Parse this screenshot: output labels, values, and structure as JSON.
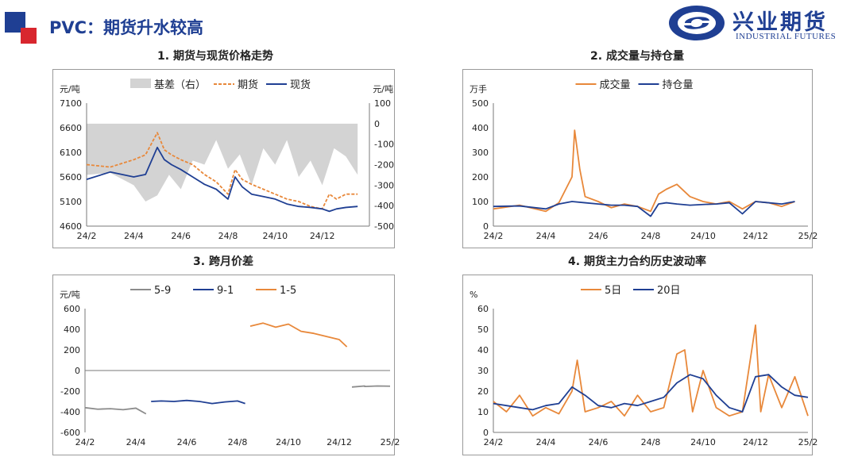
{
  "header": {
    "title": "PVC：期货升水较高",
    "brand_cn": "兴业期货",
    "brand_en": "INDUSTRIAL FUTURES",
    "colors": {
      "brand_blue": "#1f3f93",
      "brand_red": "#d8262e"
    }
  },
  "chart_data": [
    {
      "type": "line",
      "title": "1. 期货与现货价格走势",
      "ylabel": "元/吨",
      "y2label": "元/吨",
      "ylim": [
        4600,
        7100
      ],
      "yticks": [
        4600,
        5100,
        5600,
        6100,
        6600,
        7100
      ],
      "y2lim": [
        -500,
        100
      ],
      "y2ticks": [
        -500,
        -400,
        -300,
        -200,
        -100,
        0,
        100
      ],
      "xlim": [
        "24/2",
        "25/2"
      ],
      "xticks": [
        "24/2",
        "24/4",
        "24/6",
        "24/8",
        "24/10",
        "24/12"
      ],
      "legend_position": "top",
      "grid": false,
      "series": [
        {
          "name": "基差（右）",
          "kind": "area",
          "axis": "right",
          "color": "#d3d3d3",
          "x": [
            "24/2",
            "24/3",
            "24/4",
            "24/4.5",
            "24/5",
            "24/5.5",
            "24/6",
            "24/6.5",
            "24/7",
            "24/7.5",
            "24/8",
            "24/8.5",
            "24/9",
            "24/9.5",
            "24/10",
            "24/10.5",
            "24/11",
            "24/11.5",
            "24/12",
            "24/12.5",
            "25/1",
            "25/1.5"
          ],
          "values": [
            -250,
            -240,
            -300,
            -380,
            -350,
            -250,
            -320,
            -180,
            -200,
            -80,
            -220,
            -150,
            -300,
            -120,
            -200,
            -80,
            -260,
            -180,
            -300,
            -120,
            -160,
            -250
          ]
        },
        {
          "name": "期货",
          "kind": "dashed",
          "axis": "left",
          "color": "#e8883a",
          "x": [
            "24/2",
            "24/3",
            "24/4",
            "24/4.5",
            "24/5",
            "24/5.3",
            "24/5.6",
            "24/6",
            "24/6.5",
            "24/7",
            "24/7.5",
            "24/8",
            "24/8.3",
            "24/8.6",
            "24/9",
            "24/9.5",
            "24/10",
            "24/10.5",
            "24/11",
            "24/11.5",
            "24/12",
            "24/12.3",
            "24/12.6",
            "25/1",
            "25/1.5"
          ],
          "values": [
            5850,
            5800,
            5950,
            6050,
            6500,
            6150,
            6050,
            5950,
            5850,
            5650,
            5500,
            5250,
            5750,
            5550,
            5450,
            5350,
            5250,
            5150,
            5100,
            5000,
            4950,
            5250,
            5150,
            5250,
            5250
          ]
        },
        {
          "name": "现货",
          "kind": "solid",
          "axis": "left",
          "color": "#1f3f93",
          "x": [
            "24/2",
            "24/3",
            "24/4",
            "24/4.5",
            "24/5",
            "24/5.3",
            "24/5.6",
            "24/6",
            "24/6.5",
            "24/7",
            "24/7.5",
            "24/8",
            "24/8.3",
            "24/8.6",
            "24/9",
            "24/9.5",
            "24/10",
            "24/10.5",
            "24/11",
            "24/11.5",
            "24/12",
            "24/12.3",
            "24/12.6",
            "25/1",
            "25/1.5"
          ],
          "values": [
            5550,
            5700,
            5600,
            5650,
            6200,
            5950,
            5850,
            5750,
            5600,
            5450,
            5350,
            5150,
            5600,
            5400,
            5250,
            5200,
            5150,
            5050,
            5000,
            4980,
            4950,
            4900,
            4950,
            4980,
            5000
          ]
        }
      ]
    },
    {
      "type": "line",
      "title": "2. 成交量与持仓量",
      "ylabel": "万手",
      "ylim": [
        0,
        500
      ],
      "yticks": [
        0,
        100,
        200,
        300,
        400,
        500
      ],
      "xlim": [
        "24/2",
        "25/2"
      ],
      "xticks": [
        "24/2",
        "24/4",
        "24/6",
        "24/8",
        "24/10",
        "24/12",
        "25/2"
      ],
      "legend_position": "top",
      "grid": false,
      "series": [
        {
          "name": "成交量",
          "color": "#e8883a",
          "x": [
            "24/2",
            "24/3",
            "24/4",
            "24/4.5",
            "24/5",
            "24/5.1",
            "24/5.3",
            "24/5.5",
            "24/6",
            "24/6.5",
            "24/7",
            "24/7.5",
            "24/8",
            "24/8.3",
            "24/8.6",
            "24/9",
            "24/9.5",
            "24/10",
            "24/10.5",
            "24/11",
            "24/11.5",
            "24/12",
            "24/12.5",
            "25/1",
            "25/1.5"
          ],
          "values": [
            70,
            85,
            60,
            95,
            200,
            390,
            230,
            120,
            100,
            75,
            90,
            80,
            60,
            130,
            150,
            170,
            120,
            100,
            90,
            100,
            70,
            100,
            95,
            80,
            100
          ]
        },
        {
          "name": "持仓量",
          "color": "#1f3f93",
          "x": [
            "24/2",
            "24/3",
            "24/4",
            "24/4.5",
            "24/5",
            "24/5.5",
            "24/6",
            "24/6.5",
            "24/7",
            "24/7.5",
            "24/8",
            "24/8.3",
            "24/8.6",
            "24/9",
            "24/9.5",
            "24/10",
            "24/10.5",
            "24/11",
            "24/11.5",
            "24/12",
            "24/12.5",
            "25/1",
            "25/1.5"
          ],
          "values": [
            80,
            82,
            70,
            90,
            100,
            95,
            90,
            85,
            85,
            80,
            40,
            90,
            95,
            90,
            85,
            88,
            90,
            95,
            50,
            100,
            95,
            90,
            100
          ]
        }
      ]
    },
    {
      "type": "line",
      "title": "3. 跨月价差",
      "ylabel": "元/吨",
      "ylim": [
        -600,
        600
      ],
      "yticks": [
        -600,
        -400,
        -200,
        0,
        200,
        400,
        600
      ],
      "xlim": [
        "24/2",
        "25/2"
      ],
      "xticks": [
        "24/2",
        "24/4",
        "24/6",
        "24/8",
        "24/10",
        "24/12",
        "25/2"
      ],
      "legend_position": "top",
      "grid": false,
      "series": [
        {
          "name": "5-9",
          "color": "#8c8c8c",
          "x": [
            "24/2",
            "24/2.5",
            "24/3",
            "24/3.5",
            "24/4",
            "24/4.4",
            "24/12.5",
            "24/13",
            "25/1",
            "25/1.5",
            "25/2"
          ],
          "values": [
            -360,
            -375,
            -370,
            -380,
            -365,
            -420,
            -160,
            -150,
            -155,
            -150,
            -152
          ],
          "segments": [
            [
              0,
              5
            ],
            [
              6,
              10
            ]
          ]
        },
        {
          "name": "9-1",
          "color": "#1f3f93",
          "x": [
            "24/4.6",
            "24/5",
            "24/5.5",
            "24/6",
            "24/6.5",
            "24/7",
            "24/7.5",
            "24/8",
            "24/8.3"
          ],
          "values": [
            -300,
            -295,
            -300,
            -290,
            -300,
            -320,
            -305,
            -295,
            -320
          ]
        },
        {
          "name": "1-5",
          "color": "#e8883a",
          "x": [
            "24/8.5",
            "24/9",
            "24/9.5",
            "24/10",
            "24/10.5",
            "24/11",
            "24/11.5",
            "24/12",
            "24/12.3"
          ],
          "values": [
            430,
            460,
            420,
            450,
            380,
            360,
            330,
            300,
            230
          ]
        }
      ]
    },
    {
      "type": "line",
      "title": "4. 期货主力合约历史波动率",
      "ylabel": "%",
      "ylim": [
        0,
        60
      ],
      "yticks": [
        0,
        10,
        20,
        30,
        40,
        50,
        60
      ],
      "xlim": [
        "24/2",
        "25/2"
      ],
      "xticks": [
        "24/2",
        "24/4",
        "24/6",
        "24/8",
        "24/10",
        "24/12",
        "25/2"
      ],
      "legend_position": "top",
      "grid": false,
      "series": [
        {
          "name": "5日",
          "color": "#e8883a",
          "x": [
            "24/2",
            "24/2.5",
            "24/3",
            "24/3.5",
            "24/4",
            "24/4.5",
            "24/5",
            "24/5.2",
            "24/5.5",
            "24/6",
            "24/6.5",
            "24/7",
            "24/7.5",
            "24/8",
            "24/8.5",
            "24/9",
            "24/9.3",
            "24/9.6",
            "24/10",
            "24/10.5",
            "24/11",
            "24/11.5",
            "24/12",
            "24/12.2",
            "24/12.5",
            "25/1",
            "25/1.5",
            "25/2"
          ],
          "values": [
            15,
            10,
            18,
            8,
            12,
            9,
            20,
            35,
            10,
            12,
            15,
            8,
            18,
            10,
            12,
            38,
            40,
            10,
            30,
            12,
            8,
            10,
            52,
            10,
            28,
            12,
            27,
            8
          ]
        },
        {
          "name": "20日",
          "color": "#1f3f93",
          "x": [
            "24/2",
            "24/2.5",
            "24/3",
            "24/3.5",
            "24/4",
            "24/4.5",
            "24/5",
            "24/5.5",
            "24/6",
            "24/6.5",
            "24/7",
            "24/7.5",
            "24/8",
            "24/8.5",
            "24/9",
            "24/9.5",
            "24/10",
            "24/10.5",
            "24/11",
            "24/11.5",
            "24/12",
            "24/12.5",
            "25/1",
            "25/1.5",
            "25/2"
          ],
          "values": [
            14,
            13,
            12,
            11,
            13,
            14,
            22,
            18,
            13,
            12,
            14,
            13,
            15,
            17,
            24,
            28,
            26,
            18,
            12,
            10,
            27,
            28,
            22,
            18,
            17
          ]
        }
      ]
    }
  ]
}
